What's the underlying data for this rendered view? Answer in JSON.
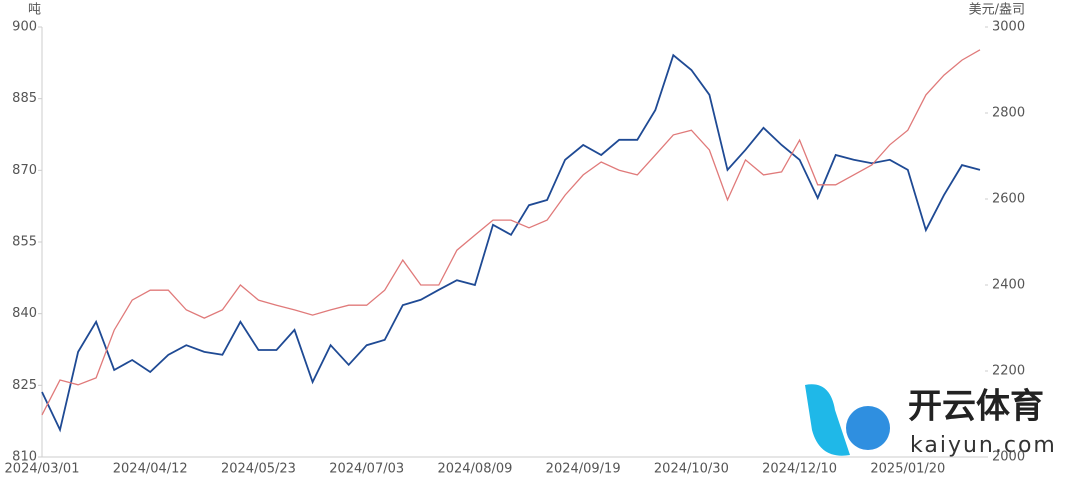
{
  "chart_data": {
    "type": "line",
    "y_label": "吨",
    "y2_label": "美元/盎司",
    "categories": [
      "2024/03/01",
      null,
      null,
      null,
      null,
      null,
      "2024/04/12",
      null,
      null,
      null,
      null,
      null,
      "2024/05/23",
      null,
      null,
      null,
      null,
      null,
      "2024/07/03",
      null,
      null,
      null,
      null,
      null,
      "2024/08/09",
      null,
      null,
      null,
      null,
      null,
      "2024/09/19",
      null,
      null,
      null,
      null,
      null,
      "2024/10/30",
      null,
      null,
      null,
      null,
      null,
      "2024/12/10",
      null,
      null,
      null,
      null,
      null,
      "2025/01/20",
      null,
      null,
      null,
      null
    ],
    "series": [
      {
        "color": "#1f4a94",
        "values": [
          823.6,
          815.7,
          832,
          838.3,
          828.2,
          830.3,
          827.8,
          831.4,
          833.4,
          832,
          831.4,
          838.3,
          832.4,
          832.4,
          836.6,
          825.7,
          833.4,
          829.3,
          833.4,
          834.5,
          841.8,
          842.9,
          845,
          847,
          846,
          858.6,
          856.5,
          862.7,
          863.8,
          872.2,
          875.3,
          873.2,
          876.4,
          876.4,
          882.6,
          894.1,
          891,
          885.8,
          870.1,
          874.3,
          878.9,
          875.3,
          872.2,
          864.2,
          873.2,
          872.2,
          871.5,
          872.2,
          870.1,
          857.5,
          864.8,
          871.1,
          870.1
        ]
      },
      {
        "color": "#e07a7a",
        "axis": "y2",
        "values": [
          2098,
          2179,
          2168,
          2184,
          2295,
          2365,
          2388,
          2388,
          2342,
          2323,
          2342,
          2400,
          2365,
          2353,
          2342,
          2330,
          2342,
          2353,
          2353,
          2388,
          2458,
          2400,
          2400,
          2481,
          2516,
          2551,
          2551,
          2533,
          2551,
          2609,
          2656,
          2686,
          2667,
          2656,
          2702,
          2749,
          2760,
          2714,
          2598,
          2691,
          2656,
          2663,
          2737,
          2633,
          2633,
          2656,
          2679,
          2726,
          2760,
          2842,
          2888,
          2923,
          2947
        ]
      }
    ],
    "ylim": [
      810,
      900
    ],
    "yticks": [
      810,
      825,
      840,
      855,
      870,
      885,
      900
    ],
    "y2lim": [
      2000,
      3000
    ],
    "y2ticks": [
      2000,
      2200,
      2400,
      2600,
      2800,
      3000
    ]
  },
  "watermark": {
    "name": "开云体育",
    "url": "kaiyun.com"
  }
}
